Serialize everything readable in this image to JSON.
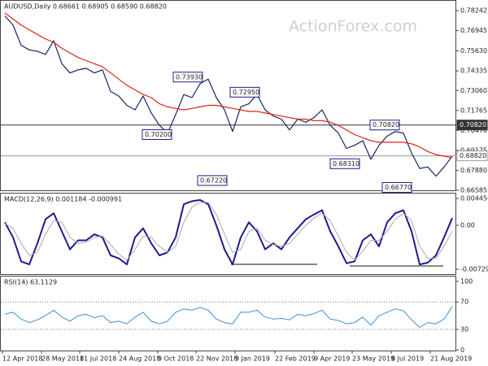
{
  "watermark": "ActionForex.com",
  "chart_data": [
    {
      "type": "line",
      "title": "AUDUSD,Daily  0.68661 0.68905 0.68590 0.68820",
      "xlim": [
        -0.5,
        55.5
      ],
      "ylim": [
        0.6653,
        0.7888
      ],
      "yticks": [
        0.78242,
        0.76945,
        {
          "value": 0.7563,
          "label": "0.75630"
        },
        0.74335,
        {
          "value": 0.7306,
          "label": "0.73060"
        },
        0.71765,
        {
          "value": 0.7047,
          "label": "0.70470"
        },
        0.69175,
        {
          "value": 0.6788,
          "label": "0.67880"
        },
        0.66585
      ],
      "series": [
        {
          "name": "Price",
          "color": "#16245e",
          "values": [
            0.779,
            0.773,
            0.76,
            0.757,
            0.756,
            0.754,
            0.763,
            0.748,
            0.742,
            0.744,
            0.745,
            0.742,
            0.744,
            0.73,
            0.727,
            0.721,
            0.718,
            0.727,
            0.716,
            0.708,
            0.703,
            0.715,
            0.728,
            0.726,
            0.735,
            0.738,
            0.726,
            0.718,
            0.704,
            0.72,
            0.722,
            0.728,
            0.718,
            0.714,
            0.712,
            0.705,
            0.712,
            0.71,
            0.713,
            0.718,
            0.708,
            0.703,
            0.693,
            0.695,
            0.698,
            0.686,
            0.695,
            0.701,
            0.704,
            0.703,
            0.69,
            0.68,
            0.681,
            0.675,
            0.681,
            0.688
          ]
        },
        {
          "name": "MA",
          "color": "#e0231c",
          "values": [
            0.781,
            0.777,
            0.773,
            0.77,
            0.767,
            0.764,
            0.762,
            0.758,
            0.755,
            0.752,
            0.75,
            0.748,
            0.746,
            0.742,
            0.738,
            0.734,
            0.731,
            0.728,
            0.726,
            0.722,
            0.72,
            0.719,
            0.718,
            0.719,
            0.72,
            0.721,
            0.721,
            0.72,
            0.719,
            0.718,
            0.717,
            0.717,
            0.716,
            0.715,
            0.714,
            0.713,
            0.712,
            0.712,
            0.711,
            0.711,
            0.71,
            0.708,
            0.705,
            0.702,
            0.7,
            0.698,
            0.697,
            0.697,
            0.697,
            0.697,
            0.696,
            0.694,
            0.691,
            0.689,
            0.688,
            0.687
          ]
        }
      ],
      "annotations": [
        {
          "value": 0.7393,
          "label": "0.73930"
        },
        {
          "value": 0.7295,
          "label": "0.72950"
        },
        {
          "value": 0.702,
          "label": "0.70200"
        },
        {
          "value": 0.6722,
          "label": "0.67220"
        },
        {
          "value": 0.7082,
          "label": "0.70820"
        },
        {
          "value": 0.6831,
          "label": "0.68310"
        },
        {
          "value": 0.6677,
          "label": "0.66770"
        }
      ],
      "levels": [
        {
          "value": 0.7082,
          "label": "0.70820",
          "color": "#333333"
        },
        {
          "value": 0.6882,
          "label": "0.68820",
          "color": "#999999"
        }
      ]
    },
    {
      "type": "line",
      "title": "MACD(12,26,9) 0.001184 -0.000991",
      "xlim": [
        -0.5,
        55.5
      ],
      "ylim": [
        -0.00824,
        0.00527
      ],
      "yticks": [
        0.004456,
        {
          "value": 0,
          "label": "0.00"
        },
        -0.007298
      ],
      "series": [
        {
          "name": "MACD",
          "color": "#1c1c8c",
          "width": 2,
          "values": [
            0.0005,
            -0.002,
            -0.006,
            -0.0065,
            -0.003,
            0.001,
            0.002,
            -0.001,
            -0.004,
            -0.0025,
            -0.0025,
            -0.0015,
            -0.002,
            -0.005,
            -0.0055,
            -0.0065,
            -0.002,
            -0.0005,
            -0.003,
            -0.005,
            -0.0045,
            -0.002,
            0.0035,
            0.004,
            0.0042,
            0.0035,
            0.0,
            -0.004,
            -0.0065,
            -0.002,
            0.0005,
            -0.001,
            -0.004,
            -0.003,
            -0.004,
            -0.002,
            -0.0005,
            0.001,
            0.0018,
            0.0025,
            -0.001,
            -0.0035,
            -0.0063,
            -0.006,
            -0.0025,
            -0.0015,
            -0.0035,
            0.0005,
            0.002,
            0.0025,
            -0.001,
            -0.0065,
            -0.0062,
            -0.005,
            -0.002,
            0.001184
          ]
        },
        {
          "name": "Signal",
          "color": "#aaaaaa",
          "width": 1,
          "values": [
            0.0003,
            -0.0005,
            -0.003,
            -0.005,
            -0.0045,
            -0.0015,
            0.0008,
            0.0005,
            -0.002,
            -0.003,
            -0.0028,
            -0.002,
            -0.0018,
            -0.0032,
            -0.0048,
            -0.0058,
            -0.004,
            -0.0018,
            -0.002,
            -0.0035,
            -0.0045,
            -0.0035,
            0.0005,
            0.003,
            0.0038,
            0.0038,
            0.0018,
            -0.0015,
            -0.0045,
            -0.004,
            -0.001,
            -0.0005,
            -0.0025,
            -0.0032,
            -0.0035,
            -0.003,
            -0.0015,
            0.0,
            0.0012,
            0.002,
            0.0008,
            -0.0018,
            -0.0045,
            -0.0058,
            -0.0043,
            -0.0025,
            -0.0025,
            -0.001,
            0.001,
            0.002,
            0.0008,
            -0.0035,
            -0.0055,
            -0.0055,
            -0.0035,
            -0.000991
          ]
        }
      ]
    },
    {
      "type": "line",
      "title": "RSI(14) 63.1129",
      "xlim": [
        -0.5,
        55.5
      ],
      "ylim": [
        -2,
        107
      ],
      "yticks": [
        0,
        30,
        70,
        100
      ],
      "grid": true,
      "series": [
        {
          "name": "RSI",
          "color": "#3d8fd8",
          "width": 1,
          "values": [
            52,
            55,
            45,
            40,
            44,
            50,
            58,
            48,
            42,
            50,
            52,
            47,
            50,
            40,
            42,
            38,
            48,
            55,
            42,
            38,
            42,
            55,
            60,
            58,
            62,
            58,
            45,
            40,
            38,
            55,
            55,
            58,
            48,
            45,
            46,
            44,
            52,
            50,
            53,
            58,
            45,
            43,
            38,
            40,
            48,
            36,
            50,
            55,
            60,
            57,
            44,
            33,
            40,
            38,
            45,
            63.1129
          ]
        }
      ],
      "xticks": [
        {
          "value": -0.3,
          "label": "12 Apr 2018"
        },
        {
          "value": 4.5,
          "label": "28 May 2018"
        },
        {
          "value": 9.2,
          "label": "11 Jul 2018"
        },
        {
          "value": 14,
          "label": "24 Aug 2018"
        },
        {
          "value": 18.8,
          "label": "9 Oct 2018"
        },
        {
          "value": 23.5,
          "label": "22 Nov 2018"
        },
        {
          "value": 28.3,
          "label": "9 Jan 2019"
        },
        {
          "value": 33.2,
          "label": "22 Feb 2019"
        },
        {
          "value": 38,
          "label": "9 Apr 2019"
        },
        {
          "value": 42.7,
          "label": "23 May 2019"
        },
        {
          "value": 47.5,
          "label": "8 Jul 2019"
        },
        {
          "value": 52.3,
          "label": "21 Aug 2019"
        }
      ]
    }
  ]
}
